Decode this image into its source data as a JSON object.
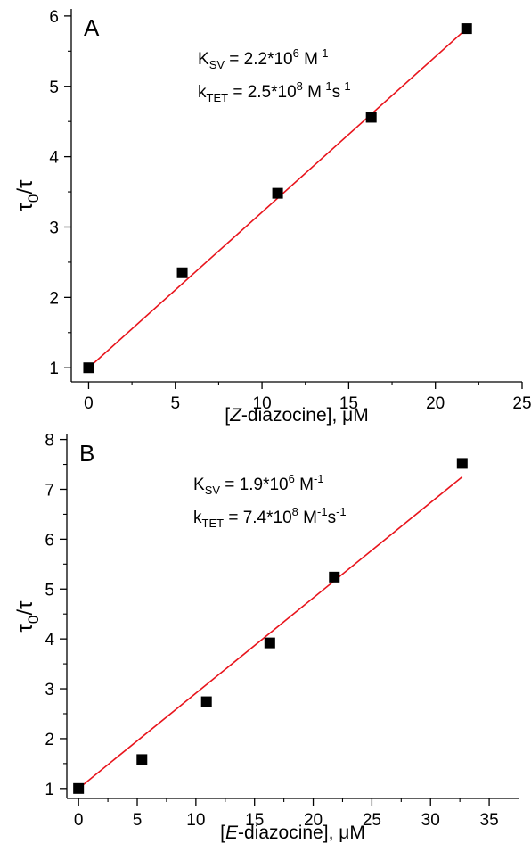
{
  "chart_data": [
    {
      "type": "scatter",
      "panel_label": "A",
      "x": [
        0,
        5.4,
        10.9,
        16.3,
        21.8
      ],
      "y": [
        1.0,
        2.35,
        3.48,
        4.56,
        5.82
      ],
      "fit": {
        "x": [
          0,
          21.8
        ],
        "y": [
          1.0,
          5.82
        ]
      },
      "xlim": [
        -1,
        25
      ],
      "ylim": [
        0.8,
        6.1
      ],
      "xticks": [
        0,
        5,
        10,
        15,
        20,
        25
      ],
      "xtick_labels": [
        "0",
        "5",
        "10",
        "15",
        "20",
        "25"
      ],
      "yticks": [
        1,
        2,
        3,
        4,
        5,
        6
      ],
      "ytick_labels": [
        "1",
        "2",
        "3",
        "4",
        "5",
        "6"
      ],
      "xlabel": {
        "pre": "[",
        "italic": "Z",
        "post": "-diazocine], μM"
      },
      "ylabel": {
        "main1": "τ",
        "sub": "0",
        "main2": "/τ"
      },
      "annotations": [
        {
          "base": "K",
          "sub": "SV",
          "mid": " = 2.2*10",
          "sup": "6",
          "tail": " M",
          "sup2": "-1",
          "tail2": ""
        },
        {
          "base": "k",
          "sub": "TET",
          "mid": " = 2.5*10",
          "sup": "8",
          "tail": " M",
          "sup2": "-1",
          "tail2": "s",
          "sup3": "-1"
        }
      ],
      "grid": false,
      "marker_color": "#000000",
      "fit_color": "#e8141c"
    },
    {
      "type": "scatter",
      "panel_label": "B",
      "x": [
        0,
        5.4,
        10.9,
        16.3,
        21.8,
        32.7
      ],
      "y": [
        1.0,
        1.58,
        2.74,
        3.92,
        5.24,
        7.52
      ],
      "fit": {
        "x": [
          0,
          32.7
        ],
        "y": [
          1.0,
          7.25
        ]
      },
      "xlim": [
        -1,
        37.5
      ],
      "ylim": [
        0.8,
        8.1
      ],
      "xticks": [
        0,
        5,
        10,
        15,
        20,
        25,
        30,
        35
      ],
      "xtick_labels": [
        "0",
        "5",
        "10",
        "15",
        "20",
        "25",
        "30",
        "35"
      ],
      "yticks": [
        1,
        2,
        3,
        4,
        5,
        6,
        7,
        8
      ],
      "ytick_labels": [
        "1",
        "2",
        "3",
        "4",
        "5",
        "6",
        "7",
        "8"
      ],
      "xlabel": {
        "pre": "[",
        "italic": "E",
        "post": "-diazocine], μM"
      },
      "ylabel": {
        "main1": "τ",
        "sub": "0",
        "main2": "/τ"
      },
      "annotations": [
        {
          "base": "K",
          "sub": "SV",
          "mid": " = 1.9*10",
          "sup": "6",
          "tail": " M",
          "sup2": "-1",
          "tail2": ""
        },
        {
          "base": "k",
          "sub": "TET",
          "mid": " = 7.4*10",
          "sup": "8",
          "tail": " M",
          "sup2": "-1",
          "tail2": "s",
          "sup3": "-1"
        }
      ],
      "grid": false,
      "marker_color": "#000000",
      "fit_color": "#e8141c"
    }
  ]
}
